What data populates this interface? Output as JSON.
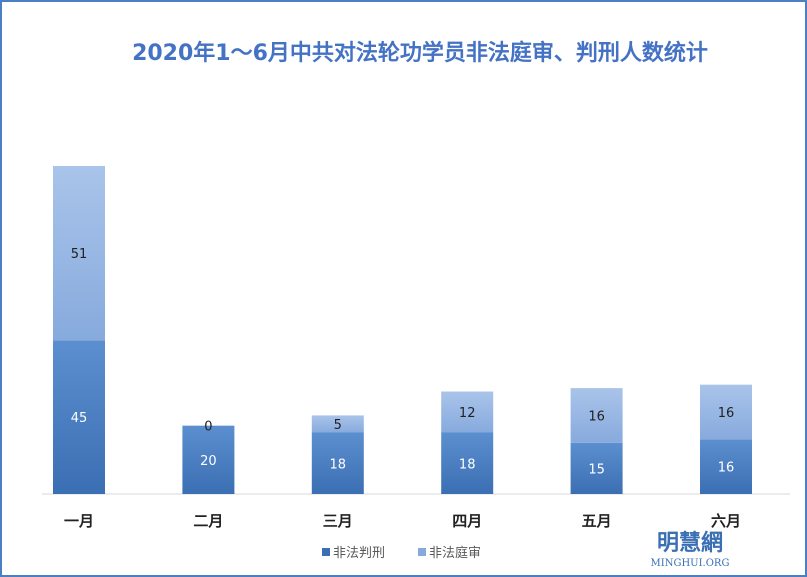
{
  "chart_data": {
    "type": "bar",
    "stacked": true,
    "title": "2020年1～6月中共对法轮功学员非法庭审、判刑人数统计",
    "categories": [
      "一月",
      "二月",
      "三月",
      "四月",
      "五月",
      "六月"
    ],
    "series": [
      {
        "name": "非法判刑",
        "values": [
          45,
          20,
          18,
          18,
          15,
          16
        ],
        "color_top": "#5b8fcf",
        "color_bottom": "#3b6fb3"
      },
      {
        "name": "非法庭审",
        "values": [
          51,
          0,
          5,
          12,
          16,
          16
        ],
        "color_top": "#a9c4ea",
        "color_bottom": "#87aadd"
      }
    ],
    "ylim": [
      0,
      96
    ],
    "grid": false,
    "legend_position": "bottom"
  },
  "watermark": {
    "cn": "明慧網",
    "en": "MINGHUI.ORG"
  }
}
